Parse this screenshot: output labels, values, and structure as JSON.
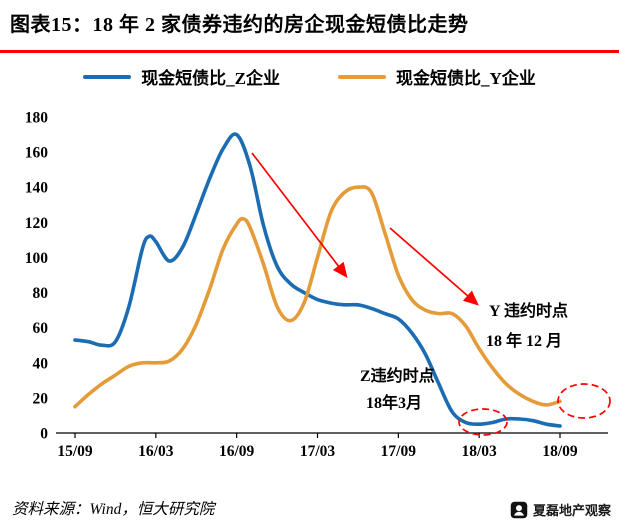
{
  "header": {
    "title": "图表15：18 年 2 家债券违约的房企现金短债比走势",
    "rule_color": "#fe0000"
  },
  "legend": [
    {
      "label": "现金短债比_Z企业",
      "color": "#1b6cb3"
    },
    {
      "label": "现金短债比_Y企业",
      "color": "#e49b38"
    }
  ],
  "chart_data": {
    "type": "line",
    "title": "18 年 2 家债券违约的房企现金短债比走势",
    "x_unit": "months since 2015-09",
    "x_tick_positions": [
      0,
      6,
      12,
      18,
      24,
      30,
      36
    ],
    "x_tick_labels": [
      "15/09",
      "16/03",
      "16/09",
      "17/03",
      "17/09",
      "18/03",
      "18/09"
    ],
    "ylim": [
      0,
      180
    ],
    "ytick_step": 20,
    "grid": false,
    "legend_position": "top",
    "series": [
      {
        "name": "现金短债比_Z企业",
        "color": "#1b6cb3",
        "x": [
          0,
          1,
          2,
          3,
          4,
          5,
          5.5,
          6,
          7,
          8,
          9,
          10,
          11,
          12,
          13,
          14,
          15,
          16,
          17,
          18,
          19,
          20,
          21,
          22,
          23,
          24,
          25,
          26,
          27,
          28,
          29,
          30,
          31,
          32,
          33,
          34,
          35,
          36
        ],
        "values": [
          53,
          52,
          50,
          52,
          72,
          105,
          112,
          109,
          98,
          106,
          125,
          145,
          162,
          170,
          152,
          118,
          95,
          85,
          80,
          76,
          74,
          73,
          73,
          71,
          68,
          65,
          57,
          45,
          28,
          12,
          6,
          5,
          6,
          8,
          8,
          7,
          5,
          4
        ]
      },
      {
        "name": "现金短债比_Y企业",
        "color": "#e49b38",
        "x": [
          0,
          1,
          2,
          3,
          4,
          5,
          6,
          7,
          8,
          9,
          10,
          11,
          12,
          12.5,
          13,
          14,
          15,
          16,
          17,
          18,
          19,
          20,
          21,
          22,
          23,
          24,
          25,
          26,
          27,
          28,
          29,
          30,
          31,
          32,
          33,
          34,
          35,
          36
        ],
        "values": [
          15,
          22,
          28,
          33,
          38,
          40,
          40,
          41,
          48,
          62,
          82,
          105,
          119,
          122,
          117,
          96,
          72,
          64,
          74,
          100,
          126,
          137,
          140,
          137,
          114,
          90,
          76,
          70,
          68,
          68,
          61,
          48,
          37,
          28,
          22,
          18,
          16,
          18
        ]
      }
    ],
    "annotations": {
      "arrow_color": "#ff0000",
      "z_default": {
        "line1": "Z违约时点",
        "line2": "18年3月"
      },
      "y_default": {
        "line1": "Y 违约时点",
        "line2": "18 年 12 月"
      }
    }
  },
  "footer": {
    "source": "资料来源：Wind，恒大研究院",
    "logo_text": "夏磊地产观察"
  }
}
